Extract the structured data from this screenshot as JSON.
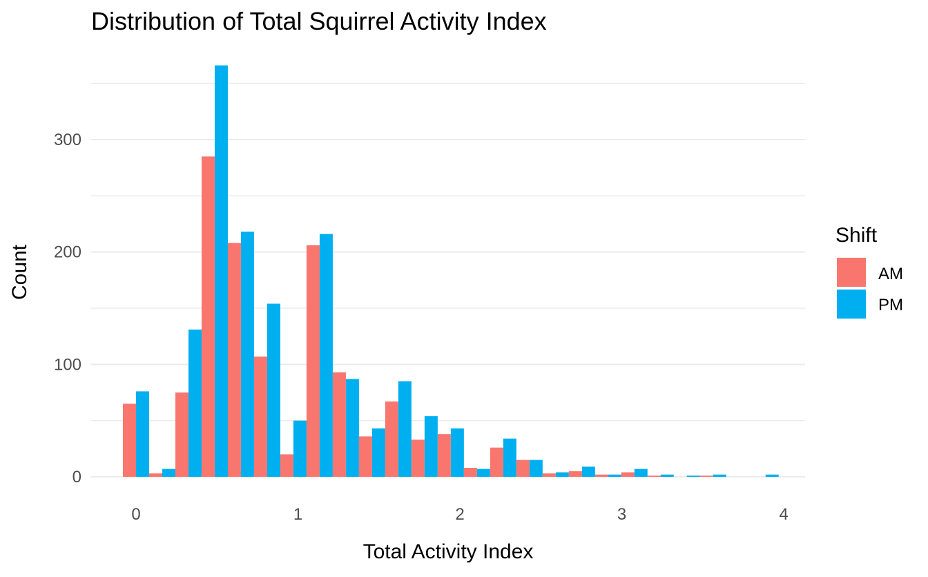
{
  "chart_data": {
    "type": "bar",
    "title": "Distribution of Total Squirrel Activity Index",
    "xlabel": "Total Activity Index",
    "ylabel": "Count",
    "xlim": [
      -0.28,
      4.13
    ],
    "ylim": [
      0,
      380
    ],
    "x_ticks": [
      0,
      1,
      2,
      3,
      4
    ],
    "y_ticks": [
      0,
      100,
      200,
      300
    ],
    "bin_width": 0.162,
    "x": [
      0,
      0.162,
      0.324,
      0.486,
      0.648,
      0.81,
      0.972,
      1.134,
      1.296,
      1.458,
      1.62,
      1.782,
      1.944,
      2.106,
      2.268,
      2.43,
      2.592,
      2.754,
      2.916,
      3.078,
      3.24,
      3.402,
      3.564,
      3.726,
      3.888
    ],
    "series": [
      {
        "name": "AM",
        "color": "#F8766D",
        "values": [
          65,
          3,
          75,
          285,
          208,
          107,
          20,
          206,
          93,
          36,
          67,
          33,
          38,
          8,
          26,
          15,
          3,
          5,
          2,
          4,
          1,
          0,
          1,
          0,
          0
        ]
      },
      {
        "name": "PM",
        "color": "#00AFEF",
        "values": [
          76,
          7,
          131,
          366,
          218,
          154,
          50,
          216,
          87,
          43,
          85,
          54,
          43,
          7,
          34,
          15,
          4,
          9,
          2,
          7,
          2,
          1,
          2,
          0,
          2
        ]
      }
    ],
    "legend": {
      "title": "Shift",
      "position": "right"
    },
    "grid": true
  }
}
